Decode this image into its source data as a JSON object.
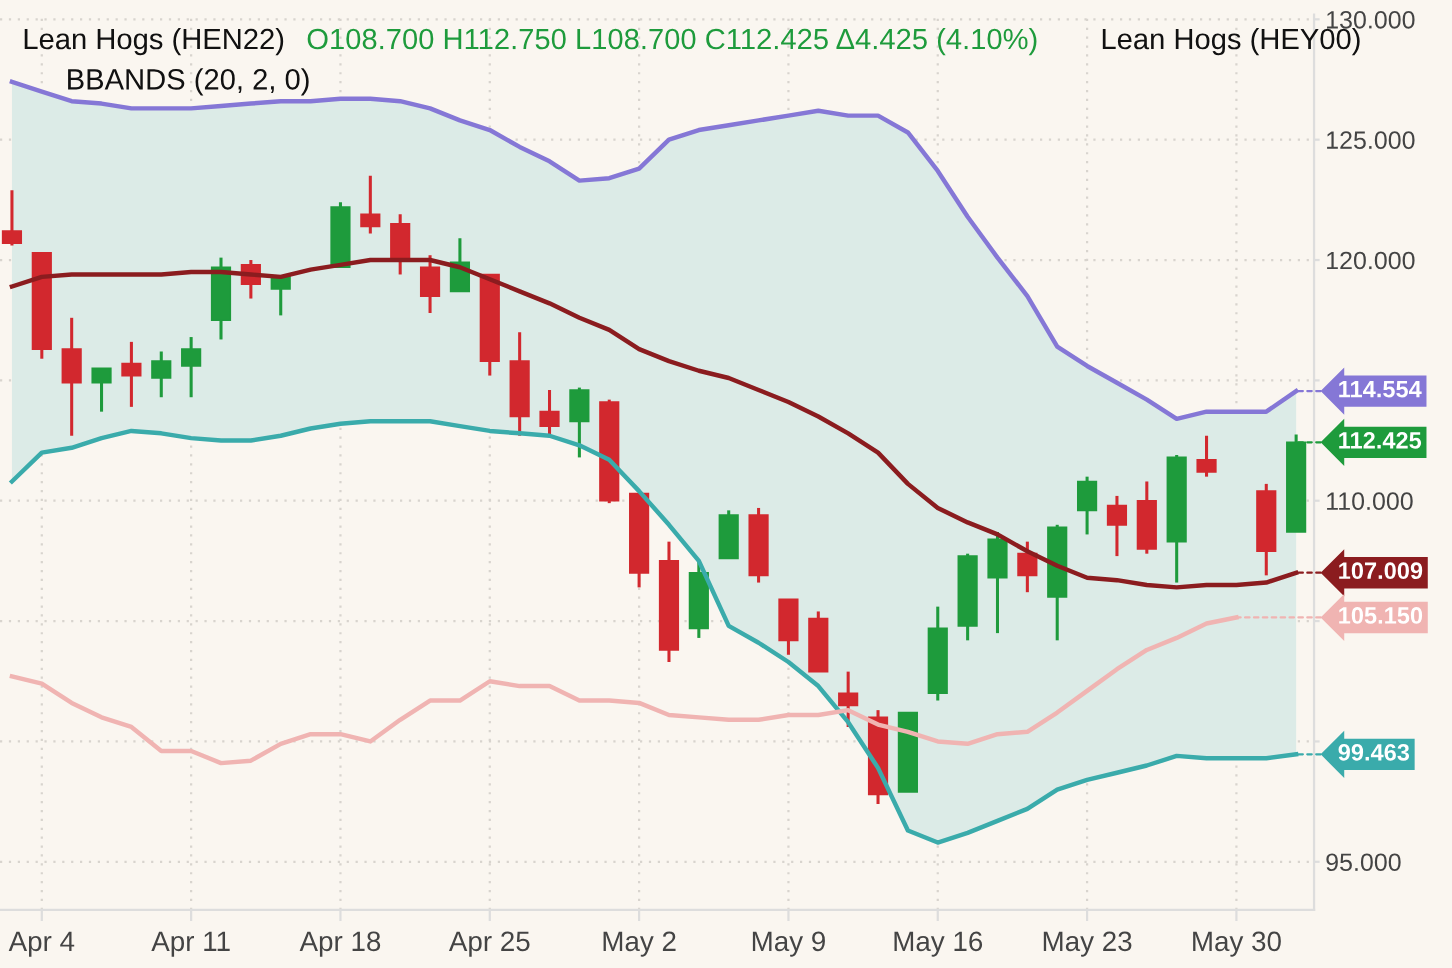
{
  "chart_data": {
    "type": "candlestick",
    "title": "Lean Hogs (HEN22)",
    "subtitle": "BBANDS (20, 2, 0)",
    "categories": [
      null,
      "Apr 4",
      null,
      null,
      null,
      null,
      "Apr 11",
      null,
      null,
      null,
      null,
      "Apr 18",
      null,
      null,
      null,
      null,
      "Apr 25",
      null,
      null,
      null,
      null,
      "May 2",
      null,
      null,
      null,
      null,
      "May 9",
      null,
      null,
      null,
      null,
      "May 16",
      null,
      null,
      null,
      null,
      "May 23",
      null,
      null,
      null,
      null,
      "May 30",
      null,
      null
    ],
    "ohlc": [
      [
        121.2,
        122.9,
        120.6,
        120.7
      ],
      [
        120.3,
        120.3,
        115.9,
        116.3
      ],
      [
        116.3,
        117.6,
        112.7,
        114.9
      ],
      [
        114.9,
        115.5,
        113.7,
        115.5
      ],
      [
        115.7,
        116.6,
        113.9,
        115.2
      ],
      [
        115.1,
        116.2,
        114.3,
        115.8
      ],
      [
        115.6,
        116.8,
        114.3,
        116.3
      ],
      [
        117.5,
        120.1,
        116.7,
        119.7
      ],
      [
        119.8,
        120.0,
        118.4,
        119.0
      ],
      [
        118.8,
        119.3,
        117.7,
        119.3
      ],
      null,
      [
        119.7,
        122.4,
        119.7,
        122.2
      ],
      [
        121.9,
        123.5,
        121.1,
        121.4
      ],
      [
        121.5,
        121.9,
        119.4,
        120.0
      ],
      [
        119.7,
        120.2,
        117.8,
        118.5
      ],
      [
        118.7,
        120.9,
        118.7,
        119.9
      ],
      [
        119.4,
        119.4,
        115.2,
        115.8
      ],
      [
        115.8,
        117.0,
        112.7,
        113.5
      ],
      [
        113.7,
        114.6,
        112.7,
        113.1
      ],
      [
        113.3,
        114.7,
        111.8,
        114.6
      ],
      [
        114.1,
        114.2,
        109.9,
        110.0
      ],
      [
        110.3,
        110.3,
        106.4,
        107.0
      ],
      [
        107.5,
        108.3,
        103.3,
        103.8
      ],
      [
        104.7,
        107.5,
        104.3,
        107.0
      ],
      [
        107.6,
        109.6,
        107.6,
        109.4
      ],
      [
        109.4,
        109.7,
        106.6,
        106.9
      ],
      [
        105.9,
        105.9,
        103.6,
        104.2
      ],
      [
        105.1,
        105.4,
        102.9,
        102.9
      ],
      [
        102.0,
        102.9,
        100.6,
        101.5
      ],
      [
        101.0,
        101.3,
        97.4,
        97.8
      ],
      [
        97.9,
        101.2,
        97.9,
        101.2
      ],
      [
        102.0,
        105.6,
        101.7,
        104.7
      ],
      [
        104.8,
        107.8,
        104.2,
        107.7
      ],
      [
        106.8,
        108.7,
        104.5,
        108.4
      ],
      [
        107.8,
        108.3,
        106.2,
        106.9
      ],
      [
        106.0,
        109.0,
        104.2,
        108.9
      ],
      [
        109.6,
        111.0,
        108.6,
        110.8
      ],
      [
        109.8,
        110.2,
        107.7,
        109.0
      ],
      [
        110.0,
        110.8,
        107.8,
        108.0
      ],
      [
        108.3,
        111.9,
        106.6,
        111.8
      ],
      [
        111.7,
        112.7,
        111.0,
        111.2
      ],
      null,
      [
        110.4,
        110.7,
        106.9,
        107.9
      ],
      [
        108.7,
        112.75,
        108.7,
        112.425
      ]
    ],
    "value_labels": [
      null,
      null,
      null,
      null,
      null,
      null,
      null,
      null,
      null,
      null,
      null,
      null,
      null,
      null,
      null,
      null,
      null,
      null,
      null,
      null,
      null,
      null,
      null,
      null,
      null,
      null,
      null,
      null,
      null,
      null,
      null,
      null,
      null,
      null,
      null,
      null,
      null,
      null,
      null,
      null,
      null,
      null,
      null,
      "112.425"
    ],
    "series": [
      {
        "type": "line",
        "color": "#8b1c1f",
        "values": [
          118.9,
          119.3,
          119.4,
          119.4,
          119.4,
          119.4,
          119.5,
          119.5,
          119.4,
          119.3,
          119.6,
          119.8,
          120.0,
          120.0,
          120.0,
          119.7,
          119.2,
          118.7,
          118.2,
          117.6,
          117.1,
          116.3,
          115.8,
          115.4,
          115.1,
          114.6,
          114.1,
          113.5,
          112.8,
          112.0,
          110.7,
          109.7,
          109.1,
          108.6,
          107.9,
          107.3,
          106.8,
          106.7,
          106.5,
          106.4,
          106.5,
          106.5,
          106.6,
          107.009
        ],
        "value_labels": [
          null,
          null,
          null,
          null,
          null,
          null,
          null,
          null,
          null,
          null,
          null,
          null,
          null,
          null,
          null,
          null,
          null,
          null,
          null,
          null,
          null,
          null,
          null,
          null,
          null,
          null,
          null,
          null,
          null,
          null,
          null,
          null,
          null,
          null,
          null,
          null,
          null,
          null,
          null,
          null,
          null,
          null,
          null,
          "107.009"
        ],
        "upper": [
          127.4,
          127.0,
          126.6,
          126.5,
          126.3,
          126.3,
          126.3,
          126.4,
          126.5,
          126.6,
          126.6,
          126.7,
          126.7,
          126.6,
          126.3,
          125.8,
          125.4,
          124.7,
          124.1,
          123.3,
          123.4,
          123.8,
          125.0,
          125.4,
          125.6,
          125.8,
          126.0,
          126.2,
          126.0,
          126.0,
          125.3,
          123.7,
          121.8,
          120.1,
          118.5,
          116.4,
          115.6,
          114.9,
          114.2,
          113.4,
          113.7,
          113.7,
          113.7,
          114.5
        ],
        "lower": [
          110.8,
          112.0,
          112.2,
          112.6,
          112.9,
          112.8,
          112.6,
          112.5,
          112.5,
          112.7,
          113.0,
          113.2,
          113.3,
          113.3,
          113.3,
          113.1,
          112.9,
          112.8,
          112.7,
          112.3,
          111.7,
          110.4,
          109.0,
          107.5,
          104.8,
          104.1,
          103.3,
          102.3,
          100.8,
          98.9,
          96.3,
          95.8,
          96.2,
          96.7,
          97.2,
          98.0,
          98.4,
          98.7,
          99.0,
          99.4,
          99.3,
          99.3,
          99.3,
          99.4
        ]
      },
      {
        "type": "line",
        "color": "#8577d6",
        "values": [
          127.4,
          127.0,
          126.6,
          126.5,
          126.3,
          126.3,
          126.3,
          126.4,
          126.5,
          126.6,
          126.6,
          126.7,
          126.7,
          126.6,
          126.3,
          125.8,
          125.4,
          124.7,
          124.1,
          123.3,
          123.4,
          123.8,
          125.0,
          125.4,
          125.6,
          125.8,
          126.0,
          126.2,
          126.0,
          126.0,
          125.3,
          123.7,
          121.8,
          120.1,
          118.5,
          116.4,
          115.6,
          114.9,
          114.2,
          113.4,
          113.7,
          113.7,
          113.7,
          114.554
        ],
        "value_labels": [
          null,
          null,
          null,
          null,
          null,
          null,
          null,
          null,
          null,
          null,
          null,
          null,
          null,
          null,
          null,
          null,
          null,
          null,
          null,
          null,
          null,
          null,
          null,
          null,
          null,
          null,
          null,
          null,
          null,
          null,
          null,
          null,
          null,
          null,
          null,
          null,
          null,
          null,
          null,
          null,
          null,
          null,
          null,
          "114.554"
        ]
      },
      {
        "type": "line",
        "color": "#3aabab",
        "values": [
          110.8,
          112.0,
          112.2,
          112.6,
          112.9,
          112.8,
          112.6,
          112.5,
          112.5,
          112.7,
          113.0,
          113.2,
          113.3,
          113.3,
          113.3,
          113.1,
          112.9,
          112.8,
          112.7,
          112.3,
          111.7,
          110.4,
          109.0,
          107.5,
          104.8,
          104.1,
          103.3,
          102.3,
          100.8,
          98.9,
          96.3,
          95.8,
          96.2,
          96.7,
          97.2,
          98.0,
          98.4,
          98.7,
          99.0,
          99.4,
          99.3,
          99.3,
          99.3,
          99.463
        ],
        "value_labels": [
          null,
          null,
          null,
          null,
          null,
          null,
          null,
          null,
          null,
          null,
          null,
          null,
          null,
          null,
          null,
          null,
          null,
          null,
          null,
          null,
          null,
          null,
          null,
          null,
          null,
          null,
          null,
          null,
          null,
          null,
          null,
          null,
          null,
          null,
          null,
          null,
          null,
          null,
          null,
          null,
          null,
          null,
          null,
          "99.463"
        ]
      },
      {
        "type": "line",
        "color": "#f0b4b2",
        "values": [
          102.7,
          102.4,
          101.6,
          101.0,
          100.6,
          99.6,
          99.6,
          99.1,
          99.2,
          99.9,
          100.3,
          100.3,
          100.0,
          100.9,
          101.7,
          101.7,
          102.5,
          102.3,
          102.3,
          101.7,
          101.7,
          101.6,
          101.1,
          101.0,
          100.9,
          100.9,
          101.1,
          101.1,
          101.3,
          100.7,
          100.4,
          100.0,
          99.9,
          100.3,
          100.4,
          101.2,
          102.1,
          103.0,
          103.8,
          104.3,
          104.9,
          105.15,
          null,
          null
        ],
        "value_labels": [
          null,
          null,
          null,
          null,
          null,
          null,
          null,
          null,
          null,
          null,
          null,
          null,
          null,
          null,
          null,
          null,
          null,
          null,
          null,
          null,
          null,
          null,
          null,
          null,
          null,
          null,
          null,
          null,
          null,
          null,
          null,
          null,
          null,
          null,
          null,
          null,
          null,
          null,
          null,
          null,
          null,
          "105.150",
          null,
          null
        ]
      }
    ],
    "ylim": [
      93,
      130.2
    ],
    "yticks": [
      {
        "value": 95,
        "label": "95.000"
      },
      {
        "value": 100,
        "label": null
      },
      {
        "value": 105,
        "label": null
      },
      {
        "value": 110,
        "label": "110.000"
      },
      {
        "value": 115,
        "label": null
      },
      {
        "value": 120,
        "label": "120.000"
      },
      {
        "value": 125,
        "label": "125.000"
      },
      {
        "value": 130,
        "label": "130.000"
      }
    ],
    "grid": true,
    "annotations": [
      "O108.700 H112.750 L108.700 C112.425 Δ4.425 (4.10%)",
      "Lean Hogs (HEY00)"
    ]
  }
}
